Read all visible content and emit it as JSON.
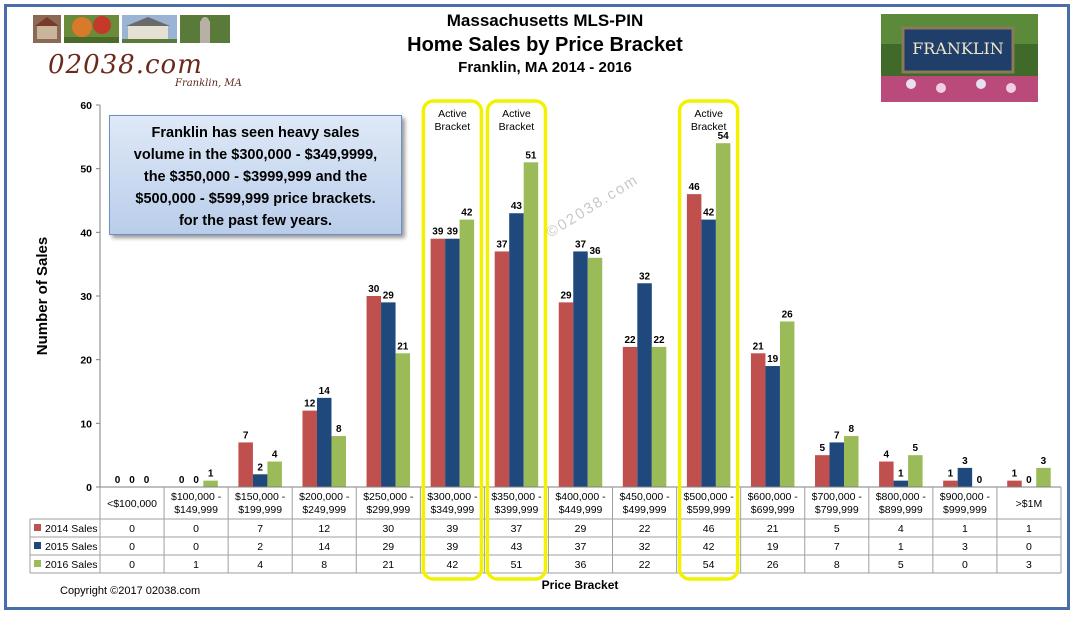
{
  "header": {
    "title_line1": "Massachusetts  MLS-PIN",
    "title_line2": "Home Sales by Price Bracket",
    "title_line3": "Franklin, MA  2014 - 2016",
    "logo_text": "02038.com",
    "logo_sub": "Franklin, MA",
    "sign_text": "FRANKLIN"
  },
  "callout": {
    "lines": [
      "Franklin has seen heavy sales",
      "volume in the $300,000 - $349,9999,",
      "the $350,000 - $3999,999 and the",
      "$500,000 - $599,999 price brackets.",
      "for the past few years."
    ]
  },
  "watermark": "©02038.com",
  "copyright": "Copyright  ©2017  02038.com",
  "highlight_label": "Active\nBracket",
  "chart_data": {
    "type": "bar",
    "ylabel": "Number  of Sales",
    "xlabel": "Price Bracket",
    "ylim": [
      0,
      60
    ],
    "yticks": [
      0,
      10,
      20,
      30,
      40,
      50,
      60
    ],
    "grid": false,
    "categories": [
      "<$100,000",
      "$100,000 -\n$149,999",
      "$150,000 -\n$199,999",
      "$200,000 -\n$249,999",
      "$250,000 -\n$299,999",
      "$300,000 -\n$349,999",
      "$350,000 -\n$399,999",
      "$400,000 -\n$449,999",
      "$450,000 -\n$499,999",
      "$500,000 -\n$599,999",
      "$600,000 -\n$699,999",
      "$700,000 -\n$799,999",
      "$800,000 -\n$899,999",
      "$900,000 -\n$999,999",
      ">$1M"
    ],
    "series": [
      {
        "name": "2014 Sales",
        "color": "#c0504d",
        "values": [
          0,
          0,
          7,
          12,
          30,
          39,
          37,
          29,
          22,
          46,
          21,
          5,
          4,
          1,
          1
        ]
      },
      {
        "name": "2015 Sales",
        "color": "#1f497d",
        "values": [
          0,
          0,
          2,
          14,
          29,
          39,
          43,
          37,
          32,
          42,
          19,
          7,
          1,
          3,
          0
        ]
      },
      {
        "name": "2016 Sales",
        "color": "#9bbb59",
        "values": [
          0,
          1,
          4,
          8,
          21,
          42,
          51,
          36,
          22,
          54,
          26,
          8,
          5,
          0,
          3
        ]
      }
    ],
    "highlighted_categories": [
      5,
      6,
      9
    ],
    "highlight_color": "#f2f200",
    "data_table": true
  }
}
